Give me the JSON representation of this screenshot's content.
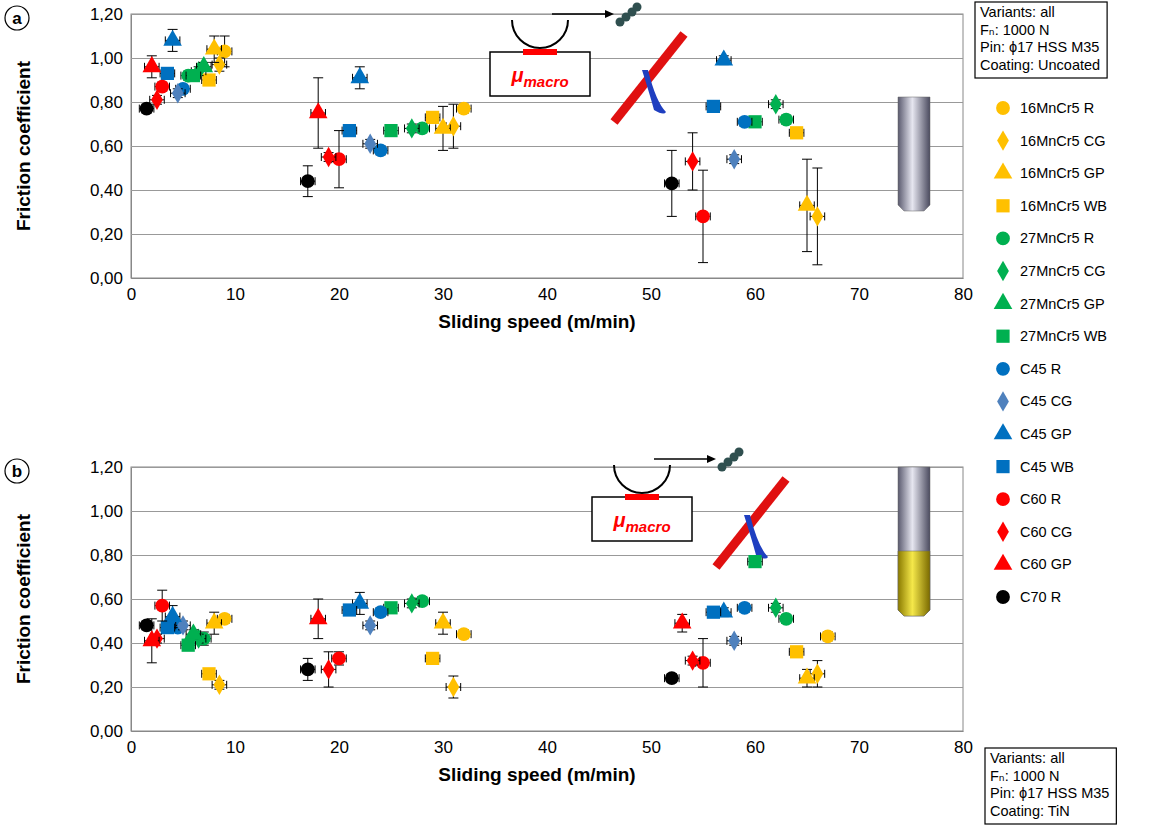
{
  "chart_data": [
    {
      "type": "scatter",
      "panel_label": "a",
      "xlabel": "Sliding speed (m/min)",
      "ylabel": "Friction coefficient",
      "xlim": [
        0,
        80
      ],
      "xticks": [
        0,
        10,
        20,
        30,
        40,
        50,
        60,
        70,
        80
      ],
      "ylim": [
        0,
        1.2
      ],
      "yticks": [
        {
          "value": 0,
          "label": "0,00"
        },
        {
          "value": 0.2,
          "label": "0,20"
        },
        {
          "value": 0.4,
          "label": "0,40"
        },
        {
          "value": 0.6,
          "label": "0,60"
        },
        {
          "value": 0.8,
          "label": "0,80"
        },
        {
          "value": 1.0,
          "label": "1,00"
        },
        {
          "value": 1.2,
          "label": "1,20"
        }
      ],
      "grid": true,
      "legend": "right",
      "info": [
        "Variants: all",
        "Fₙ: 1000 N",
        "Pin: ϕ17 HSS M35",
        "Coating: Uncoated"
      ],
      "schematic_label": {
        "symbol": "μ",
        "subscript": "macro"
      },
      "series": [
        {
          "name": "16MnCr5 R",
          "color": "#FFC000",
          "marker": "circle",
          "x": [
            9,
            32
          ],
          "values": [
            1.03,
            0.77
          ],
          "errors": [
            0.07,
            0.02
          ],
          "x_errors": [
            0.7,
            0.7
          ]
        },
        {
          "name": "16MnCr5 CG",
          "color": "#FFC000",
          "marker": "diamond",
          "x": [
            8.5,
            31,
            66
          ],
          "values": [
            0.97,
            0.69,
            0.28
          ],
          "errors": [
            0.03,
            0.1,
            0.22
          ],
          "x_errors": [
            0.7,
            0.7,
            0.7
          ]
        },
        {
          "name": "16MnCr5 GP",
          "color": "#FFC000",
          "marker": "triangle",
          "x": [
            8,
            30,
            65
          ],
          "values": [
            1.04,
            0.68,
            0.33
          ],
          "errors": [
            0.06,
            0.1,
            0.21
          ],
          "x_errors": [
            0.7,
            0.7,
            0.7
          ]
        },
        {
          "name": "16MnCr5 WB",
          "color": "#FFC000",
          "marker": "square",
          "x": [
            7.5,
            29,
            64
          ],
          "values": [
            0.9,
            0.73,
            0.66
          ],
          "errors": [
            0.02,
            0.02,
            0.02
          ],
          "x_errors": [
            0.7,
            0.7,
            0.7
          ]
        },
        {
          "name": "27MnCr5 R",
          "color": "#00B050",
          "marker": "circle",
          "x": [
            5.5,
            28,
            63
          ],
          "values": [
            0.92,
            0.68,
            0.72
          ],
          "errors": [
            0.02,
            0.02,
            0.02
          ],
          "x_errors": [
            0.7,
            0.7,
            0.7
          ]
        },
        {
          "name": "27MnCr5 CG",
          "color": "#00B050",
          "marker": "diamond",
          "x": [
            6.5,
            27,
            62
          ],
          "values": [
            0.94,
            0.68,
            0.79
          ],
          "errors": [
            0.02,
            0.02,
            0.02
          ],
          "x_errors": [
            0.7,
            0.7,
            0.7
          ]
        },
        {
          "name": "27MnCr5 GP",
          "color": "#00B050",
          "marker": "triangle",
          "x": [
            7
          ],
          "values": [
            0.96
          ],
          "errors": [
            0.02
          ],
          "x_errors": [
            0.7
          ]
        },
        {
          "name": "27MnCr5 WB",
          "color": "#00B050",
          "marker": "square",
          "x": [
            6,
            25,
            60
          ],
          "values": [
            0.92,
            0.67,
            0.71
          ],
          "errors": [
            0.02,
            0.02,
            0.02
          ],
          "x_errors": [
            0.7,
            0.7,
            0.7
          ]
        },
        {
          "name": "C45 R",
          "color": "#0070C0",
          "marker": "circle",
          "x": [
            5,
            24,
            59
          ],
          "values": [
            0.86,
            0.58,
            0.71
          ],
          "errors": [
            0.02,
            0.02,
            0.02
          ],
          "x_errors": [
            0.7,
            0.7,
            0.7
          ]
        },
        {
          "name": "C45 CG",
          "color": "#4F81BD",
          "marker": "diamond",
          "x": [
            4.5,
            23,
            58
          ],
          "values": [
            0.84,
            0.61,
            0.54
          ],
          "errors": [
            0.02,
            0.02,
            0.02
          ],
          "x_errors": [
            0.7,
            0.7,
            0.7
          ]
        },
        {
          "name": "C45 GP",
          "color": "#0070C0",
          "marker": "triangle",
          "x": [
            4,
            22,
            57
          ],
          "values": [
            1.08,
            0.91,
            0.99
          ],
          "errors": [
            0.05,
            0.05,
            0.02
          ],
          "x_errors": [
            0.7,
            0.7,
            0.7
          ]
        },
        {
          "name": "C45 WB",
          "color": "#0070C0",
          "marker": "square",
          "x": [
            3.5,
            21,
            56
          ],
          "values": [
            0.93,
            0.67,
            0.78
          ],
          "errors": [
            0.02,
            0.02,
            0.02
          ],
          "x_errors": [
            0.7,
            0.7,
            0.7
          ]
        },
        {
          "name": "C60 R",
          "color": "#FF0000",
          "marker": "circle",
          "x": [
            3,
            20,
            55
          ],
          "values": [
            0.87,
            0.54,
            0.28
          ],
          "errors": [
            0.02,
            0.13,
            0.21
          ],
          "x_errors": [
            0.7,
            0.7,
            0.7
          ]
        },
        {
          "name": "C60 CG",
          "color": "#FF0000",
          "marker": "diamond",
          "x": [
            2.5,
            19,
            54
          ],
          "values": [
            0.81,
            0.55,
            0.53
          ],
          "errors": [
            0.02,
            0.02,
            0.13
          ],
          "x_errors": [
            0.7,
            0.7,
            0.7
          ]
        },
        {
          "name": "C60 GP",
          "color": "#FF0000",
          "marker": "triangle",
          "x": [
            2,
            18
          ],
          "values": [
            0.96,
            0.75
          ],
          "errors": [
            0.05,
            0.16
          ],
          "x_errors": [
            0.7,
            0.7
          ]
        },
        {
          "name": "C70 R",
          "color": "#000000",
          "marker": "circle",
          "x": [
            1.5,
            17,
            52
          ],
          "values": [
            0.77,
            0.44,
            0.43
          ],
          "errors": [
            0.02,
            0.07,
            0.15
          ],
          "x_errors": [
            0.7,
            0.7,
            0.7
          ]
        }
      ]
    },
    {
      "type": "scatter",
      "panel_label": "b",
      "xlabel": "Sliding speed (m/min)",
      "ylabel": "Friction coefficient",
      "xlim": [
        0,
        80
      ],
      "xticks": [
        0,
        10,
        20,
        30,
        40,
        50,
        60,
        70,
        80
      ],
      "ylim": [
        0,
        1.2
      ],
      "yticks": [
        {
          "value": 0,
          "label": "0,00"
        },
        {
          "value": 0.2,
          "label": "0,20"
        },
        {
          "value": 0.4,
          "label": "0,40"
        },
        {
          "value": 0.6,
          "label": "0,60"
        },
        {
          "value": 0.8,
          "label": "0,80"
        },
        {
          "value": 1.0,
          "label": "1,00"
        },
        {
          "value": 1.2,
          "label": "1,20"
        }
      ],
      "grid": true,
      "info": [
        "Variants: all",
        "Fₙ: 1000 N",
        "Pin: ϕ17 HSS M35",
        "Coating: TiN"
      ],
      "schematic_label": {
        "symbol": "μ",
        "subscript": "macro"
      },
      "series": [
        {
          "color": "#FFC000",
          "marker": "circle",
          "x": [
            9,
            32,
            67
          ],
          "values": [
            0.51,
            0.44,
            0.43
          ],
          "errors": [
            0.02,
            0.02,
            0.02
          ],
          "x_errors": [
            0.7,
            0.7,
            0.7
          ]
        },
        {
          "color": "#FFC000",
          "marker": "diamond",
          "x": [
            8.5,
            31,
            66
          ],
          "values": [
            0.21,
            0.2,
            0.26
          ],
          "errors": [
            0.02,
            0.05,
            0.06
          ],
          "x_errors": [
            0.7,
            0.7,
            0.7
          ]
        },
        {
          "color": "#FFC000",
          "marker": "triangle",
          "x": [
            8,
            30,
            65
          ],
          "values": [
            0.49,
            0.49,
            0.24
          ],
          "errors": [
            0.05,
            0.05,
            0.04
          ],
          "x_errors": [
            0.7,
            0.7,
            0.7
          ]
        },
        {
          "color": "#FFC000",
          "marker": "square",
          "x": [
            7.5,
            29,
            64
          ],
          "values": [
            0.26,
            0.33,
            0.36
          ],
          "errors": [
            0.02,
            0.02,
            0.02
          ],
          "x_errors": [
            0.7,
            0.7,
            0.7
          ]
        },
        {
          "color": "#00B050",
          "marker": "circle",
          "x": [
            7,
            28,
            63
          ],
          "values": [
            0.42,
            0.59,
            0.51
          ],
          "errors": [
            0.03,
            0.02,
            0.02
          ],
          "x_errors": [
            0.7,
            0.7,
            0.7
          ]
        },
        {
          "color": "#00B050",
          "marker": "diamond",
          "x": [
            6.5,
            27,
            62
          ],
          "values": [
            0.42,
            0.58,
            0.56
          ],
          "errors": [
            0.02,
            0.02,
            0.02
          ],
          "x_errors": [
            0.7,
            0.7,
            0.7
          ]
        },
        {
          "color": "#00B050",
          "marker": "triangle",
          "x": [
            6
          ],
          "values": [
            0.44
          ],
          "errors": [
            0.02
          ],
          "x_errors": [
            0.7
          ]
        },
        {
          "color": "#00B050",
          "marker": "square",
          "x": [
            5.5,
            25,
            60
          ],
          "values": [
            0.39,
            0.56,
            0.77
          ],
          "errors": [
            0.02,
            0.02,
            0.02
          ],
          "x_errors": [
            0.7,
            0.7,
            0.7
          ]
        },
        {
          "color": "#0070C0",
          "marker": "circle",
          "x": [
            4.5,
            24,
            59
          ],
          "values": [
            0.47,
            0.54,
            0.56
          ],
          "errors": [
            0.02,
            0.02,
            0.02
          ],
          "x_errors": [
            0.7,
            0.7,
            0.7
          ]
        },
        {
          "color": "#4F81BD",
          "marker": "diamond",
          "x": [
            5,
            23,
            58
          ],
          "values": [
            0.48,
            0.48,
            0.41
          ],
          "errors": [
            0.02,
            0.02,
            0.02
          ],
          "x_errors": [
            0.7,
            0.7,
            0.7
          ]
        },
        {
          "color": "#0070C0",
          "marker": "triangle",
          "x": [
            4,
            22,
            57
          ],
          "values": [
            0.52,
            0.58,
            0.54
          ],
          "errors": [
            0.05,
            0.05,
            0.02
          ],
          "x_errors": [
            0.7,
            0.7,
            0.7
          ]
        },
        {
          "color": "#0070C0",
          "marker": "square",
          "x": [
            3.5,
            21,
            56
          ],
          "values": [
            0.47,
            0.55,
            0.54
          ],
          "errors": [
            0.02,
            0.02,
            0.02
          ],
          "x_errors": [
            0.7,
            0.7,
            0.7
          ]
        },
        {
          "color": "#FF0000",
          "marker": "circle",
          "x": [
            3,
            20,
            55
          ],
          "values": [
            0.57,
            0.33,
            0.31
          ],
          "errors": [
            0.07,
            0.03,
            0.11
          ],
          "x_errors": [
            0.7,
            0.7,
            0.7
          ]
        },
        {
          "color": "#FF0000",
          "marker": "diamond",
          "x": [
            2.5,
            19,
            54
          ],
          "values": [
            0.42,
            0.28,
            0.32
          ],
          "errors": [
            0.02,
            0.08,
            0.02
          ],
          "x_errors": [
            0.7,
            0.7,
            0.7
          ]
        },
        {
          "color": "#FF0000",
          "marker": "triangle",
          "x": [
            2,
            18,
            53
          ],
          "values": [
            0.41,
            0.51,
            0.49
          ],
          "errors": [
            0.1,
            0.09,
            0.04
          ],
          "x_errors": [
            0.7,
            0.7,
            0.7
          ]
        },
        {
          "color": "#000000",
          "marker": "circle",
          "x": [
            1.5,
            17,
            52
          ],
          "values": [
            0.48,
            0.28,
            0.24
          ],
          "errors": [
            0.02,
            0.05,
            0.02
          ],
          "x_errors": [
            0.7,
            0.7,
            0.7
          ]
        }
      ]
    }
  ]
}
